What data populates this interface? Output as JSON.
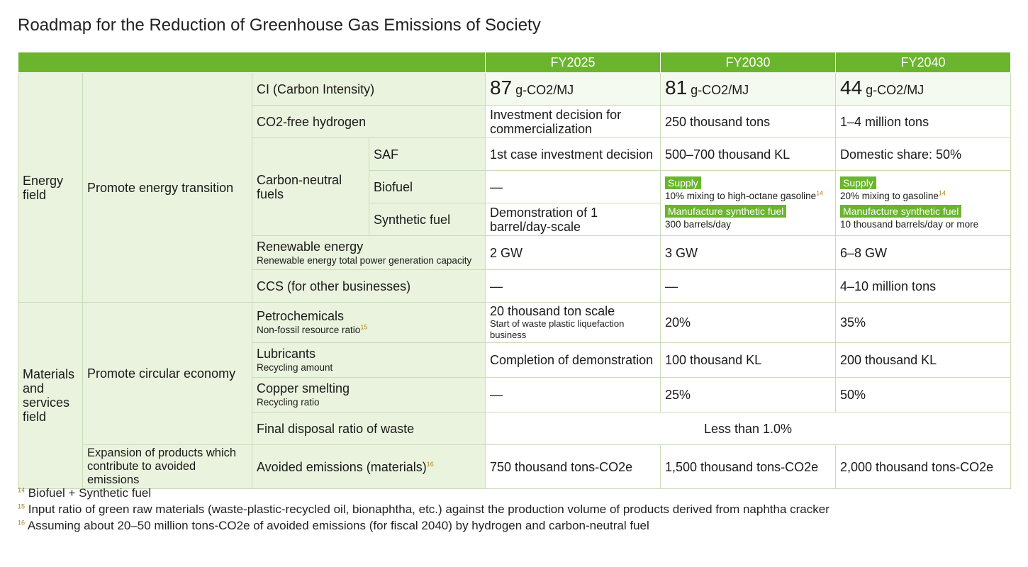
{
  "title": "Roadmap for the Reduction of Greenhouse Gas Emissions of Society",
  "years": [
    "FY2025",
    "FY2030",
    "FY2040"
  ],
  "energy": {
    "field": "Energy field",
    "policy": "Promote energy transition",
    "ci": {
      "label": "CI (Carbon Intensity)",
      "unit": "g-CO2/MJ",
      "values": [
        "87",
        "81",
        "44"
      ]
    },
    "hydrogen": {
      "label": "CO2-free hydrogen",
      "values": [
        "Investment decision for commercialization",
        "250 thousand tons",
        "1–4 million tons"
      ]
    },
    "cnf": {
      "label": "Carbon-neutral fuels",
      "saf": {
        "label": "SAF",
        "values": [
          "1st case investment decision",
          "500–700 thousand KL",
          "Domestic share: 50%"
        ]
      },
      "biofuel": {
        "label": "Biofuel",
        "fy2025": "—"
      },
      "synthetic": {
        "label": "Synthetic fuel",
        "fy2025": "Demonstration of 1 barrel/day-scale"
      },
      "fy2030": {
        "supply_badge": "Supply",
        "supply_text": "10% mixing to high-octane gasoline",
        "supply_fn": "14",
        "manuf_badge": "Manufacture synthetic fuel",
        "manuf_text": "300 barrels/day"
      },
      "fy2040": {
        "supply_badge": "Supply",
        "supply_text": "20% mixing to gasoline",
        "supply_fn": "14",
        "manuf_badge": "Manufacture synthetic fuel",
        "manuf_text": "10 thousand barrels/day or more"
      }
    },
    "renewable": {
      "label": "Renewable energy",
      "sublabel": "Renewable energy total power generation capacity",
      "values": [
        "2 GW",
        "3 GW",
        "6–8 GW"
      ]
    },
    "ccs": {
      "label": "CCS (for other businesses)",
      "values": [
        "—",
        "—",
        "4–10 million tons"
      ]
    }
  },
  "materials": {
    "field": "Materials and services field",
    "policy": "Promote circular economy",
    "petro": {
      "label": "Petrochemicals",
      "sublabel": "Non-fossil resource ratio",
      "fn": "15",
      "fy2025_main": "20 thousand ton scale",
      "fy2025_sub": "Start of waste plastic liquefaction business",
      "fy2030": "20%",
      "fy2040": "35%"
    },
    "lubricants": {
      "label": "Lubricants",
      "sublabel": "Recycling amount",
      "values": [
        "Completion of demonstration",
        "100 thousand KL",
        "200 thousand KL"
      ]
    },
    "copper": {
      "label": "Copper smelting",
      "sublabel": "Recycling ratio",
      "values": [
        "—",
        "25%",
        "50%"
      ]
    },
    "waste": {
      "label": "Final disposal ratio of waste",
      "value": "Less than 1.0%"
    },
    "avoided": {
      "policy": "Expansion of products which contribute to avoided emissions",
      "label": "Avoided emissions (materials)",
      "fn": "16",
      "values": [
        "750 thousand tons-CO2e",
        "1,500 thousand tons-CO2e",
        "2,000 thousand tons-CO2e"
      ]
    }
  },
  "footnotes": [
    {
      "num": "14",
      "text": "Biofuel + Synthetic fuel"
    },
    {
      "num": "15",
      "text": "Input ratio of green raw materials (waste-plastic-recycled oil, bionaphtha, etc.) against the production volume of products derived from naphtha cracker"
    },
    {
      "num": "16",
      "text": "Assuming about 20–50 million tons-CO2e of avoided emissions (for fiscal 2040) by hydrogen and carbon-neutral fuel"
    }
  ],
  "colors": {
    "header_green": "#6ab42e",
    "category_bg": "#eaf3de",
    "border": "#c9dcb8",
    "footnote_num": "#b0851a"
  }
}
